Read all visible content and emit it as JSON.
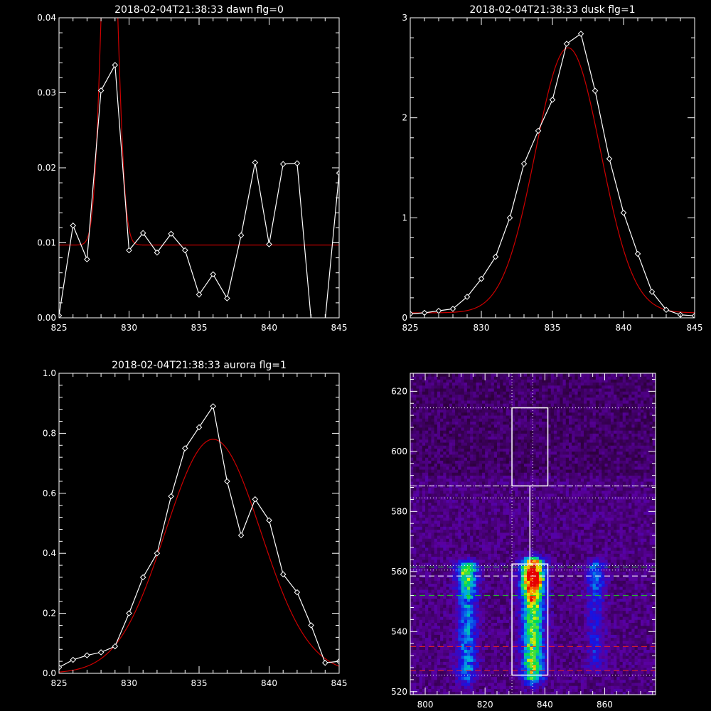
{
  "colors": {
    "background": "#000000",
    "axis": "#ffffff",
    "data_line": "#ffffff",
    "fit_line": "#cc0000",
    "marker_white": "#ffffff",
    "marker_green": "#22cc22",
    "marker_red": "#ee2222"
  },
  "chart_data": [
    {
      "type": "line",
      "title": "2018-02-04T21:38:33 dawn flg=0",
      "xlim": [
        825,
        845
      ],
      "ylim": [
        0,
        0.04
      ],
      "xticks": [
        "825",
        "830",
        "835",
        "840",
        "845"
      ],
      "yticks": [
        "0.00",
        "0.01",
        "0.02",
        "0.03",
        "0.04"
      ],
      "xtick_values": [
        825,
        830,
        835,
        840,
        845
      ],
      "ytick_values": [
        0,
        0.01,
        0.02,
        0.03,
        0.04
      ],
      "series": [
        {
          "style": "line-with-diamond-markers",
          "color": "#ffffff",
          "x": [
            825,
            826,
            827,
            828,
            829,
            830,
            831,
            832,
            833,
            834,
            835,
            836,
            837,
            838,
            839,
            840,
            841,
            842,
            843,
            844,
            845
          ],
          "y": [
            0.0003,
            0.0123,
            0.0078,
            0.0303,
            0.0337,
            0.009,
            0.0113,
            0.0087,
            0.0112,
            0.009,
            0.0031,
            0.0058,
            0.0026,
            0.011,
            0.0207,
            0.0098,
            0.0205,
            0.0206,
            -0.0003,
            -0.0003,
            0.0193
          ]
        },
        {
          "style": "fit",
          "color": "#cc0000",
          "gaussian": {
            "offset": 0.0097,
            "amplitude": 0.055,
            "center": 828.6,
            "sigma": 0.55
          }
        }
      ]
    },
    {
      "type": "line",
      "title": "2018-02-04T21:38:33 dusk flg=1",
      "xlim": [
        825,
        845
      ],
      "ylim": [
        0,
        3
      ],
      "xticks": [
        "825",
        "830",
        "835",
        "840",
        "845"
      ],
      "yticks": [
        "0",
        "1",
        "2",
        "3"
      ],
      "xtick_values": [
        825,
        830,
        835,
        840,
        845
      ],
      "ytick_values": [
        0,
        1,
        2,
        3
      ],
      "series": [
        {
          "style": "line-with-diamond-markers",
          "color": "#ffffff",
          "x": [
            825,
            826,
            827,
            828,
            829,
            830,
            831,
            832,
            833,
            834,
            835,
            836,
            837,
            838,
            839,
            840,
            841,
            842,
            843,
            844,
            845
          ],
          "y": [
            0.04,
            0.05,
            0.07,
            0.09,
            0.21,
            0.39,
            0.61,
            1.0,
            1.54,
            1.87,
            2.18,
            2.74,
            2.84,
            2.27,
            1.59,
            1.05,
            0.64,
            0.26,
            0.08,
            0.03,
            0.02
          ]
        },
        {
          "style": "fit",
          "color": "#cc0000",
          "gaussian": {
            "offset": 0.05,
            "amplitude": 2.65,
            "center": 836.1,
            "sigma": 2.3
          }
        }
      ]
    },
    {
      "type": "line",
      "title": "2018-02-04T21:38:33 aurora flg=1",
      "xlim": [
        825,
        845
      ],
      "ylim": [
        0,
        1.0
      ],
      "xticks": [
        "825",
        "830",
        "835",
        "840",
        "845"
      ],
      "yticks": [
        "0.0",
        "0.2",
        "0.4",
        "0.6",
        "0.8",
        "1.0"
      ],
      "xtick_values": [
        825,
        830,
        835,
        840,
        845
      ],
      "ytick_values": [
        0,
        0.2,
        0.4,
        0.6,
        0.8,
        1.0
      ],
      "series": [
        {
          "style": "line-with-diamond-markers",
          "color": "#ffffff",
          "x": [
            825,
            826,
            827,
            828,
            829,
            830,
            831,
            832,
            833,
            834,
            835,
            836,
            837,
            838,
            839,
            840,
            841,
            842,
            843,
            844,
            845
          ],
          "y": [
            0.02,
            0.045,
            0.06,
            0.07,
            0.09,
            0.2,
            0.32,
            0.4,
            0.59,
            0.75,
            0.82,
            0.89,
            0.64,
            0.46,
            0.58,
            0.51,
            0.33,
            0.27,
            0.16,
            0.035,
            0.04
          ]
        },
        {
          "style": "fit",
          "color": "#cc0000",
          "gaussian": {
            "offset": 0.0,
            "amplitude": 0.78,
            "center": 836.0,
            "sigma": 3.4
          }
        }
      ]
    },
    {
      "type": "heatmap",
      "title": "",
      "xlim": [
        795,
        877
      ],
      "ylim": [
        519,
        626
      ],
      "xticks": [
        "800",
        "820",
        "840",
        "860"
      ],
      "yticks": [
        "520",
        "540",
        "560",
        "580",
        "600",
        "620"
      ],
      "xtick_values": [
        800,
        820,
        840,
        860
      ],
      "ytick_values": [
        520,
        540,
        560,
        580,
        600,
        620
      ],
      "colormap": "rainbow",
      "cell_size": 1,
      "emission_columns": [
        {
          "center": 814,
          "width": 2.4,
          "y_from": 526,
          "y_to": 562,
          "peak_y": 559,
          "intensity": 0.55
        },
        {
          "center": 836,
          "width": 2.6,
          "y_from": 526,
          "y_to": 563,
          "peak_y": 558,
          "intensity": 1.0
        },
        {
          "center": 857,
          "width": 2.2,
          "y_from": 530,
          "y_to": 562,
          "peak_y": 559,
          "intensity": 0.32
        }
      ],
      "boxes": [
        {
          "x": [
            829,
            841
          ],
          "y": [
            588.5,
            614.5
          ],
          "color": "#ffffff"
        },
        {
          "x": [
            829,
            841
          ],
          "y": [
            525.5,
            562.5
          ],
          "color": "#ffffff"
        }
      ],
      "connector": {
        "x": [
          835,
          835
        ],
        "y": [
          562.5,
          588.5
        ]
      },
      "vlines": [
        {
          "x": 829,
          "style": "dotted",
          "color": "#ffffff"
        },
        {
          "x": 836,
          "style": "dotted",
          "color": "#ffffff"
        }
      ],
      "hlines": [
        {
          "y": 614.5,
          "style": "dotted",
          "color": "#ffffff"
        },
        {
          "y": 588.5,
          "style": "dotted",
          "color": "#ffffff"
        },
        {
          "y": 584.5,
          "style": "dotted",
          "color": "#ffffff"
        },
        {
          "y": 562.0,
          "style": "dotted",
          "color": "#ffffff"
        },
        {
          "y": 560.5,
          "style": "dotted",
          "color": "#ffffff"
        },
        {
          "y": 525.5,
          "style": "dotted",
          "color": "#ffffff"
        },
        {
          "y": 588.5,
          "style": "dashed",
          "color": "#ffffff"
        },
        {
          "y": 558.5,
          "style": "dashed",
          "color": "#ffffff"
        },
        {
          "y": 561.5,
          "style": "dashed",
          "color": "#22cc22"
        },
        {
          "y": 552.0,
          "style": "dashed",
          "color": "#22cc22"
        },
        {
          "y": 535.0,
          "style": "dashed",
          "color": "#ee2222"
        },
        {
          "y": 527.0,
          "style": "dashed",
          "color": "#ee2222"
        }
      ]
    }
  ]
}
